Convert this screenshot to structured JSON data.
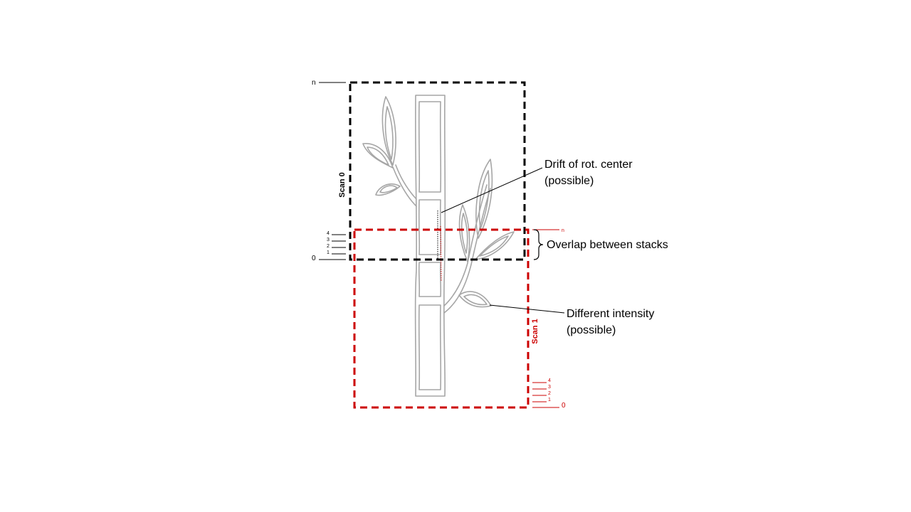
{
  "colors": {
    "scan0": "#000000",
    "scan1": "#cc0000",
    "plant": "#a6a6a6"
  },
  "scan0": {
    "label": "Scan 0",
    "top_label": "n",
    "bottom_label": "0",
    "ticks": [
      "4",
      "3",
      "2",
      "1"
    ]
  },
  "scan1": {
    "label": "Scan 1",
    "top_label": "n",
    "bottom_label": "0",
    "ticks": [
      "4",
      "3",
      "2",
      "1"
    ]
  },
  "annotations": {
    "drift_line1": "Drift of rot. center",
    "drift_line2": "(possible)",
    "overlap": "Overlap between stacks",
    "intensity_line1": "Different intensity",
    "intensity_line2": "(possible)"
  }
}
